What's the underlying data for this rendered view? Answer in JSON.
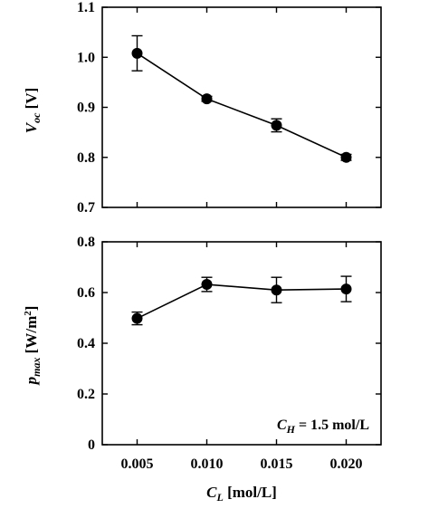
{
  "chart_data": [
    {
      "type": "line",
      "x": [
        0.005,
        0.01,
        0.015,
        0.02
      ],
      "xlim": [
        0.0025,
        0.0225
      ],
      "xticks": [
        "0.005",
        "0.010",
        "0.015",
        "0.020"
      ],
      "xlabel": "",
      "ylabel_main": "V",
      "ylabel_sub": "oc",
      "ylabel_unit": " [V]",
      "ylim": [
        0.7,
        1.1
      ],
      "yticks": [
        "0.7",
        "0.8",
        "0.9",
        "1.0",
        "1.1"
      ],
      "series": [
        {
          "values": [
            1.008,
            0.917,
            0.864,
            0.8
          ],
          "errors": [
            0.035,
            0.005,
            0.013,
            0.006
          ]
        }
      ],
      "grid": false
    },
    {
      "type": "line",
      "x": [
        0.005,
        0.01,
        0.015,
        0.02
      ],
      "xlim": [
        0.0025,
        0.0225
      ],
      "xticks": [
        "0.005",
        "0.010",
        "0.015",
        "0.020"
      ],
      "xlabel_main": "C",
      "xlabel_sub": "L",
      "xlabel_unit": " [mol/L]",
      "ylabel_main": "p",
      "ylabel_sub": "max",
      "ylabel_unit": " [W/m",
      "ylabel_sup": "2",
      "ylabel_close": "]",
      "ylim": [
        0,
        0.8
      ],
      "yticks": [
        "0",
        "0.2",
        "0.4",
        "0.6",
        "0.8"
      ],
      "series": [
        {
          "values": [
            0.498,
            0.632,
            0.61,
            0.614
          ],
          "errors": [
            0.025,
            0.028,
            0.05,
            0.05
          ]
        }
      ],
      "annotation": {
        "main": "C",
        "sub": "H",
        "rest": " = 1.5 mol/L"
      },
      "grid": false
    }
  ]
}
